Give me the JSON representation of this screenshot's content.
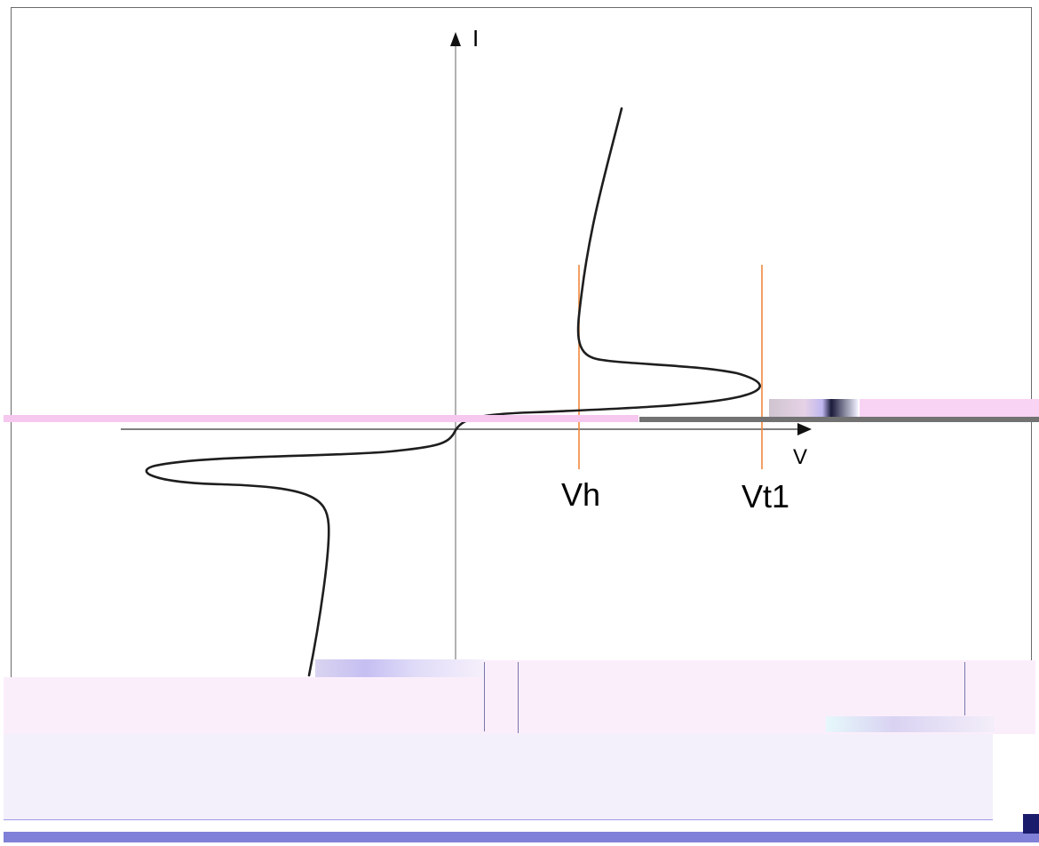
{
  "diagram": {
    "axis_y_label": "I",
    "axis_x_label": "V",
    "marker_labels": {
      "vh": "Vh",
      "vt1": "Vt1"
    },
    "colors": {
      "axes": "#888888",
      "curve": "#1e1e1e",
      "markers": "#f0883c",
      "frame": "#6b6b6b"
    }
  }
}
